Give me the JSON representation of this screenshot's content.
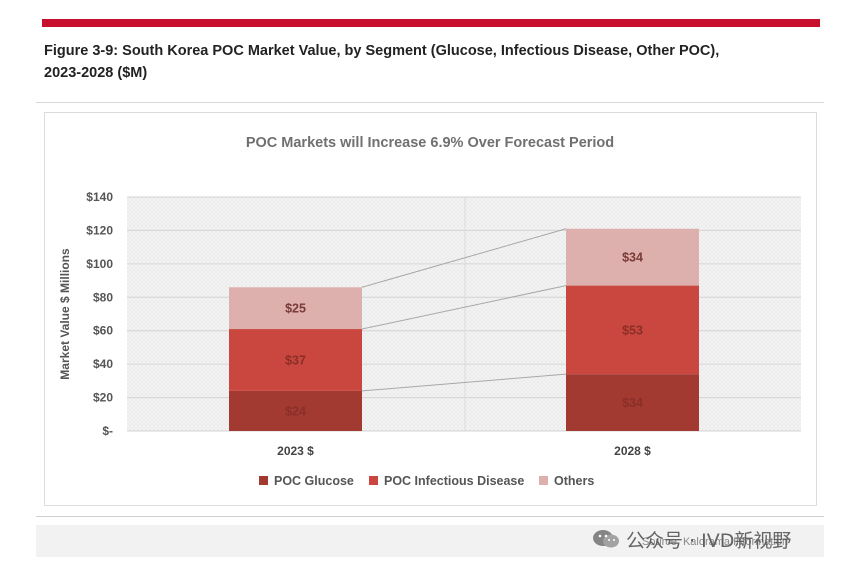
{
  "figure_title_line1": "Figure 3-9: South Korea POC Market Value, by Segment (Glucose, Infectious Disease, Other POC),",
  "figure_title_line2": "2023-2028 ($M)",
  "source": "Source: Kalorama Information",
  "watermark": "公众号 · IVD新视野",
  "colors": {
    "accent_bar": "#c8102e",
    "glucose": "#a23a32",
    "infectious": "#c9473f",
    "others": "#ddb0ae",
    "text": "#555555"
  },
  "chart_data": {
    "type": "bar",
    "stacked": true,
    "title": "POC Markets will Increase 6.9% Over Forecast Period",
    "ylabel": "Market Value $ Millions",
    "xlabel": "",
    "ylim": [
      0,
      140
    ],
    "yticks": [
      0,
      20,
      40,
      60,
      80,
      100,
      120,
      140
    ],
    "ytick_labels": [
      "$-",
      "$20",
      "$40",
      "$60",
      "$80",
      "$100",
      "$120",
      "$140"
    ],
    "categories": [
      "2023 $",
      "2028 $"
    ],
    "series": [
      {
        "name": "POC Glucose",
        "values": [
          24,
          34
        ],
        "labels": [
          "$24",
          "$34"
        ]
      },
      {
        "name": "POC Infectious Disease",
        "values": [
          37,
          53
        ],
        "labels": [
          "$37",
          "$53"
        ]
      },
      {
        "name": "Others",
        "values": [
          25,
          34
        ],
        "labels": [
          "$25",
          "$34"
        ]
      }
    ],
    "grid": true,
    "legend": "bottom",
    "connector_lines": true
  }
}
